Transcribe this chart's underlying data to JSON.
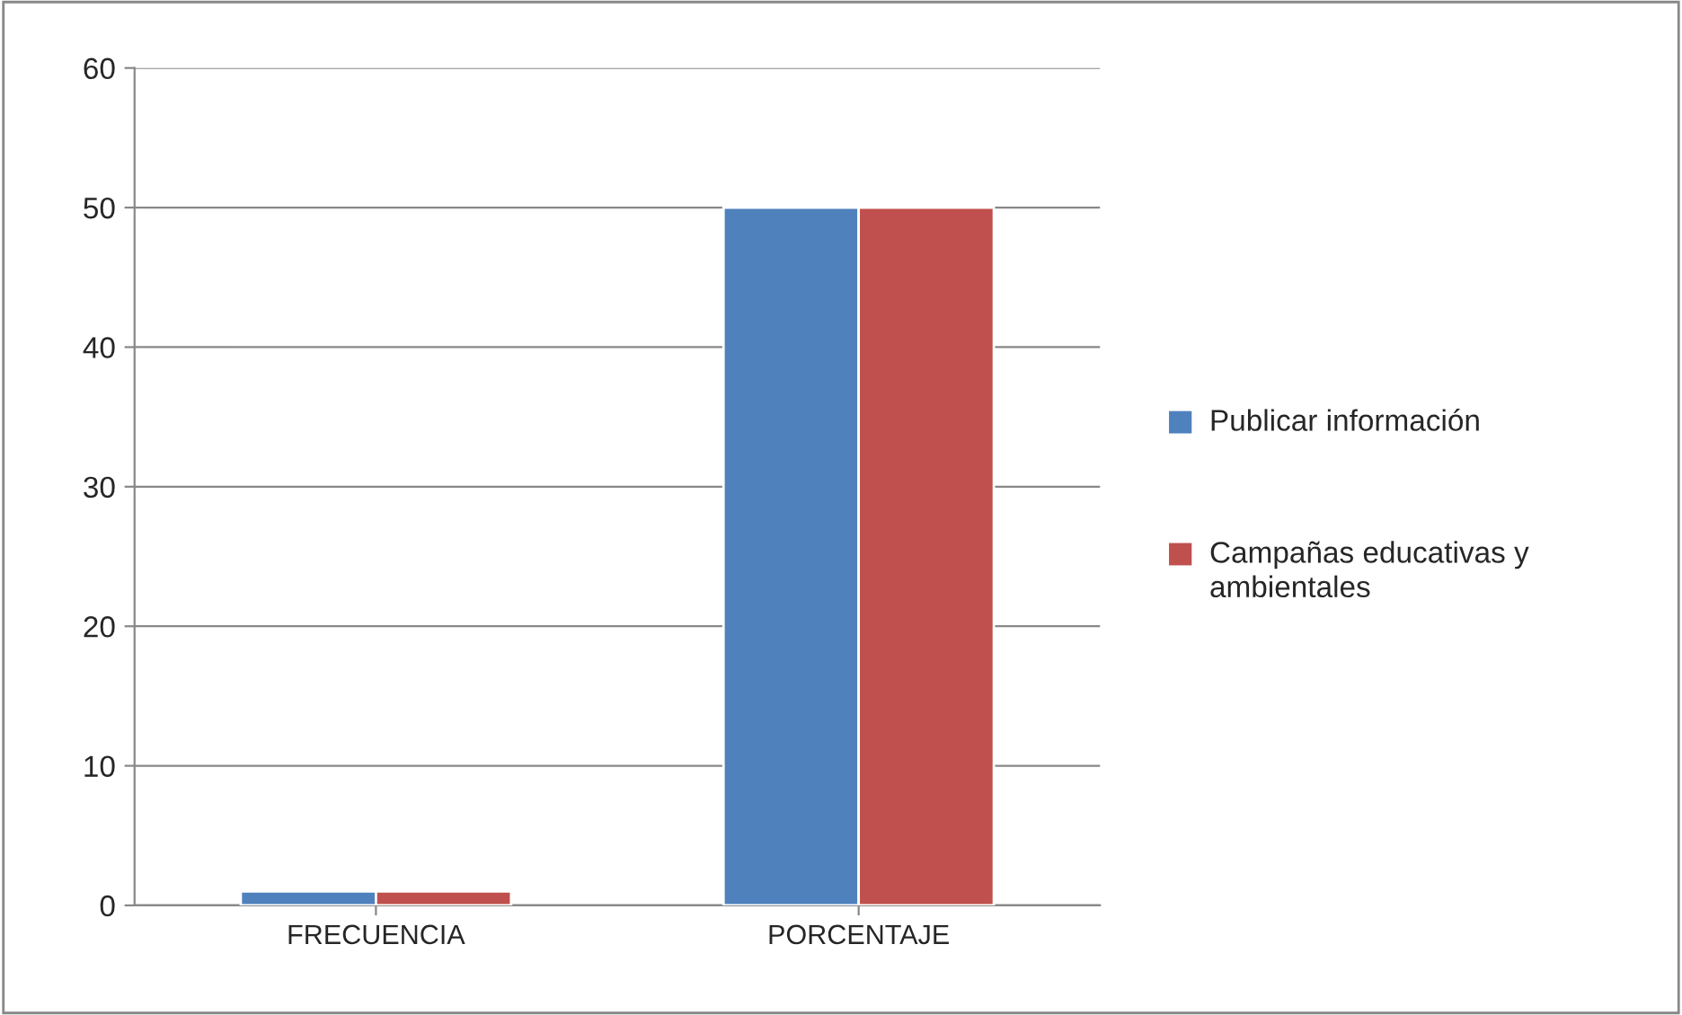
{
  "chart_data": {
    "type": "bar",
    "categories": [
      "FRECUENCIA",
      "PORCENTAJE"
    ],
    "series": [
      {
        "name": "Publicar información",
        "color": "#4f81bd",
        "values": [
          1,
          50
        ]
      },
      {
        "name": "Campañas educativas y ambientales",
        "color": "#c0504d",
        "values": [
          1,
          50
        ]
      }
    ],
    "ylim": [
      0,
      60
    ],
    "yticks": [
      0,
      10,
      20,
      30,
      40,
      50,
      60
    ],
    "grid": "y",
    "legend": "right"
  }
}
